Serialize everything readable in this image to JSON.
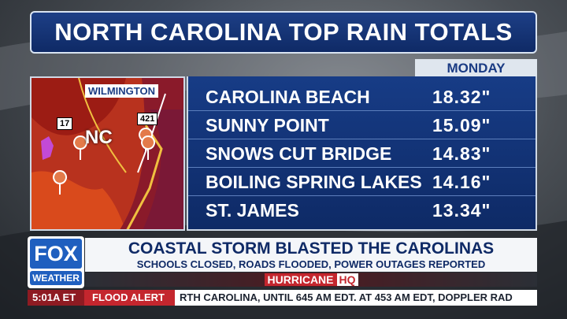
{
  "header": {
    "title": "NORTH CAROLINA TOP RAIN TOTALS"
  },
  "map": {
    "city": "WILMINGTON",
    "state": "NC",
    "routes": [
      "17",
      "421"
    ]
  },
  "table": {
    "column": "MONDAY",
    "rows": [
      [
        "CAROLINA BEACH",
        "18.32\""
      ],
      [
        "SUNNY POINT",
        "15.09\""
      ],
      [
        "SNOWS CUT BRIDGE",
        "14.83\""
      ],
      [
        "BOILING SPRING LAKES",
        "14.16\""
      ],
      [
        "ST. JAMES",
        "13.34\""
      ]
    ]
  },
  "lower_third": {
    "logo": [
      "FOX",
      "WEATHER"
    ],
    "headline": "COASTAL STORM BLASTED THE CAROLINAS",
    "subhead": "SCHOOLS CLOSED, ROADS FLOODED, POWER OUTAGES REPORTED",
    "brand": [
      "HURRICANE",
      "HQ"
    ]
  },
  "ticker": {
    "time": "5:01A ET",
    "alert": "FLOOD ALERT",
    "text": "RTH CAROLINA, UNTIL 645 AM EDT. AT 453 AM EDT, DOPPLER RAD"
  }
}
